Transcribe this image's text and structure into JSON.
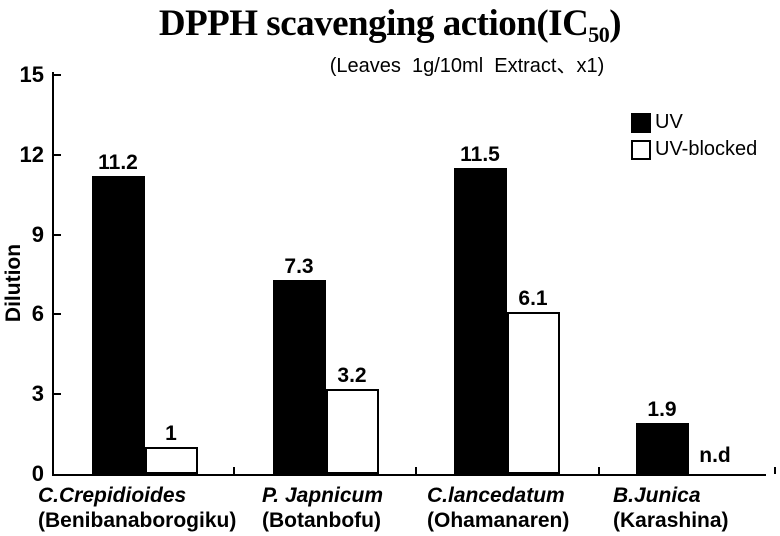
{
  "title": {
    "main": "DPPH scavenging action",
    "suffix_pre": "(IC",
    "suffix_sub": "50",
    "suffix_post": ")"
  },
  "subtitle": "(Leaves  1g/10ml  Extract、x1)",
  "y_axis": {
    "label": "Dilution",
    "ticks": [
      15,
      12,
      9,
      6,
      3,
      0
    ]
  },
  "legend": [
    {
      "label": "UV",
      "swatch": "black"
    },
    {
      "label": "UV-blocked",
      "swatch": "white"
    }
  ],
  "colors": {
    "foreground": "#000000",
    "background": "#ffffff"
  },
  "chart_data": {
    "type": "bar",
    "title": "DPPH scavenging action (IC50)",
    "subtitle": "(Leaves 1g/10ml Extract、x1)",
    "ylabel": "Dilution",
    "ylim": [
      0,
      15
    ],
    "ytick_step": 3,
    "grid": false,
    "legend_position": "upper right",
    "categories": [
      {
        "species": "C.Crepidioides",
        "common": "(Benibanaborogiku)"
      },
      {
        "species": "P. Japnicum",
        "common": "(Botanbofu)"
      },
      {
        "species": "C.lancedatum",
        "common": "(Ohamanaren)"
      },
      {
        "species": "B.Junica",
        "common": "(Karashina)"
      }
    ],
    "series": [
      {
        "name": "UV",
        "fill": "#000000",
        "values": [
          11.2,
          7.3,
          11.5,
          1.9
        ],
        "labels": [
          "11.2",
          "7.3",
          "11.5",
          "1.9"
        ]
      },
      {
        "name": "UV-blocked",
        "fill": "#ffffff",
        "values": [
          1,
          3.2,
          6.1,
          null
        ],
        "labels": [
          "1",
          "3.2",
          "6.1",
          "n.d"
        ]
      }
    ]
  }
}
